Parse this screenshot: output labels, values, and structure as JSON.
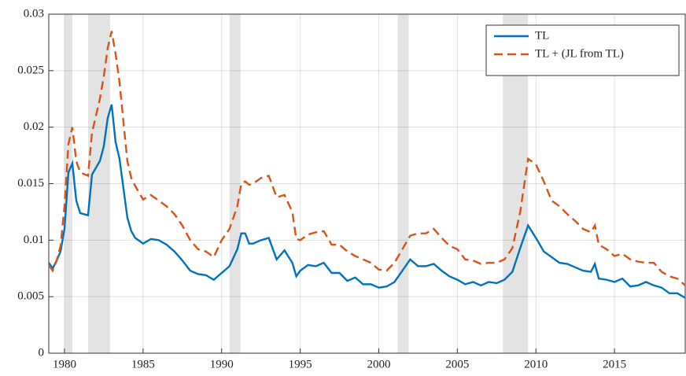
{
  "chart_data": {
    "type": "line",
    "x": [
      1979,
      1979.25,
      1979.5,
      1979.75,
      1980,
      1980.25,
      1980.5,
      1980.75,
      1981,
      1981.5,
      1981.75,
      1982.25,
      1982.5,
      1982.75,
      1983,
      1983.25,
      1983.5,
      1984,
      1984.25,
      1984.5,
      1985,
      1985.5,
      1986,
      1986.5,
      1987,
      1987.5,
      1988,
      1988.5,
      1989,
      1989.5,
      1990,
      1990.5,
      1991,
      1991.25,
      1991.5,
      1991.75,
      1992,
      1992.5,
      1993,
      1993.5,
      1994,
      1994.5,
      1994.75,
      1995,
      1995.5,
      1996,
      1996.5,
      1997,
      1997.5,
      1998,
      1998.5,
      1999,
      1999.5,
      2000,
      2000.5,
      2001,
      2001.5,
      2002,
      2002.5,
      2003,
      2003.5,
      2004,
      2004.5,
      2005,
      2005.5,
      2006,
      2006.5,
      2007,
      2007.5,
      2008,
      2008.5,
      2009,
      2009.5,
      2010,
      2010.5,
      2011,
      2011.5,
      2012,
      2012.5,
      2013,
      2013.5,
      2013.75,
      2014,
      2014.5,
      2015,
      2015.5,
      2016,
      2016.5,
      2017,
      2017.5,
      2018,
      2018.5,
      2019,
      2019.5
    ],
    "series": [
      {
        "name": "TL",
        "color": "#0072bd",
        "line_style": "solid",
        "values": [
          0.008,
          0.0075,
          0.0082,
          0.009,
          0.011,
          0.016,
          0.0168,
          0.0135,
          0.0124,
          0.0122,
          0.0158,
          0.017,
          0.0183,
          0.0208,
          0.022,
          0.0187,
          0.0172,
          0.012,
          0.0108,
          0.0102,
          0.0097,
          0.0101,
          0.01,
          0.0096,
          0.009,
          0.0082,
          0.0073,
          0.007,
          0.0069,
          0.0065,
          0.0071,
          0.0077,
          0.0092,
          0.0106,
          0.0106,
          0.0097,
          0.0097,
          0.01,
          0.0102,
          0.0083,
          0.0091,
          0.008,
          0.0068,
          0.0073,
          0.0078,
          0.0077,
          0.008,
          0.0071,
          0.0071,
          0.0064,
          0.0067,
          0.0061,
          0.0061,
          0.0058,
          0.0059,
          0.0063,
          0.0073,
          0.0083,
          0.0077,
          0.0077,
          0.0079,
          0.0073,
          0.0068,
          0.0065,
          0.0061,
          0.0063,
          0.006,
          0.0063,
          0.0062,
          0.0065,
          0.0072,
          0.0093,
          0.0113,
          0.0102,
          0.009,
          0.0085,
          0.008,
          0.0079,
          0.0076,
          0.0073,
          0.0072,
          0.0079,
          0.0066,
          0.0065,
          0.0063,
          0.0066,
          0.0059,
          0.006,
          0.0063,
          0.006,
          0.0058,
          0.0053,
          0.0053,
          0.0049
        ]
      },
      {
        "name": "TL + (JL from TL)",
        "color": "#d95319",
        "line_style": "dashed",
        "values": [
          0.0078,
          0.0073,
          0.0082,
          0.0095,
          0.013,
          0.0185,
          0.02,
          0.017,
          0.016,
          0.0157,
          0.0195,
          0.0225,
          0.0245,
          0.027,
          0.0285,
          0.0265,
          0.024,
          0.017,
          0.0155,
          0.0148,
          0.0136,
          0.014,
          0.0135,
          0.013,
          0.0123,
          0.0113,
          0.01,
          0.0092,
          0.009,
          0.0085,
          0.01,
          0.011,
          0.013,
          0.015,
          0.0152,
          0.0149,
          0.015,
          0.0155,
          0.0157,
          0.0138,
          0.014,
          0.0125,
          0.0101,
          0.01,
          0.0105,
          0.0107,
          0.0108,
          0.0096,
          0.0096,
          0.009,
          0.0086,
          0.0083,
          0.008,
          0.0074,
          0.0073,
          0.008,
          0.0092,
          0.0104,
          0.0106,
          0.0106,
          0.011,
          0.0102,
          0.0095,
          0.0092,
          0.0083,
          0.0082,
          0.0079,
          0.008,
          0.008,
          0.0083,
          0.0093,
          0.0125,
          0.0172,
          0.0167,
          0.0152,
          0.0135,
          0.013,
          0.0123,
          0.0117,
          0.011,
          0.0107,
          0.0113,
          0.0096,
          0.0092,
          0.0086,
          0.0088,
          0.0083,
          0.0081,
          0.008,
          0.008,
          0.0072,
          0.0068,
          0.0066,
          0.006
        ]
      }
    ],
    "shaded_regions": [
      [
        1980,
        1980.5
      ],
      [
        1981.5,
        1982.9
      ],
      [
        1990.5,
        1991.2
      ],
      [
        2001.2,
        2001.9
      ],
      [
        2007.9,
        2009.5
      ]
    ],
    "shade_color": "#e3e3e3",
    "xlim": [
      1979,
      2019.5
    ],
    "xticks": [
      1980,
      1985,
      1990,
      1995,
      2000,
      2005,
      2010,
      2015
    ],
    "ylim": [
      0,
      0.03
    ],
    "yticks": [
      0,
      0.005,
      0.01,
      0.015,
      0.02,
      0.025,
      0.03
    ],
    "grid": true,
    "legend": "upper right"
  }
}
